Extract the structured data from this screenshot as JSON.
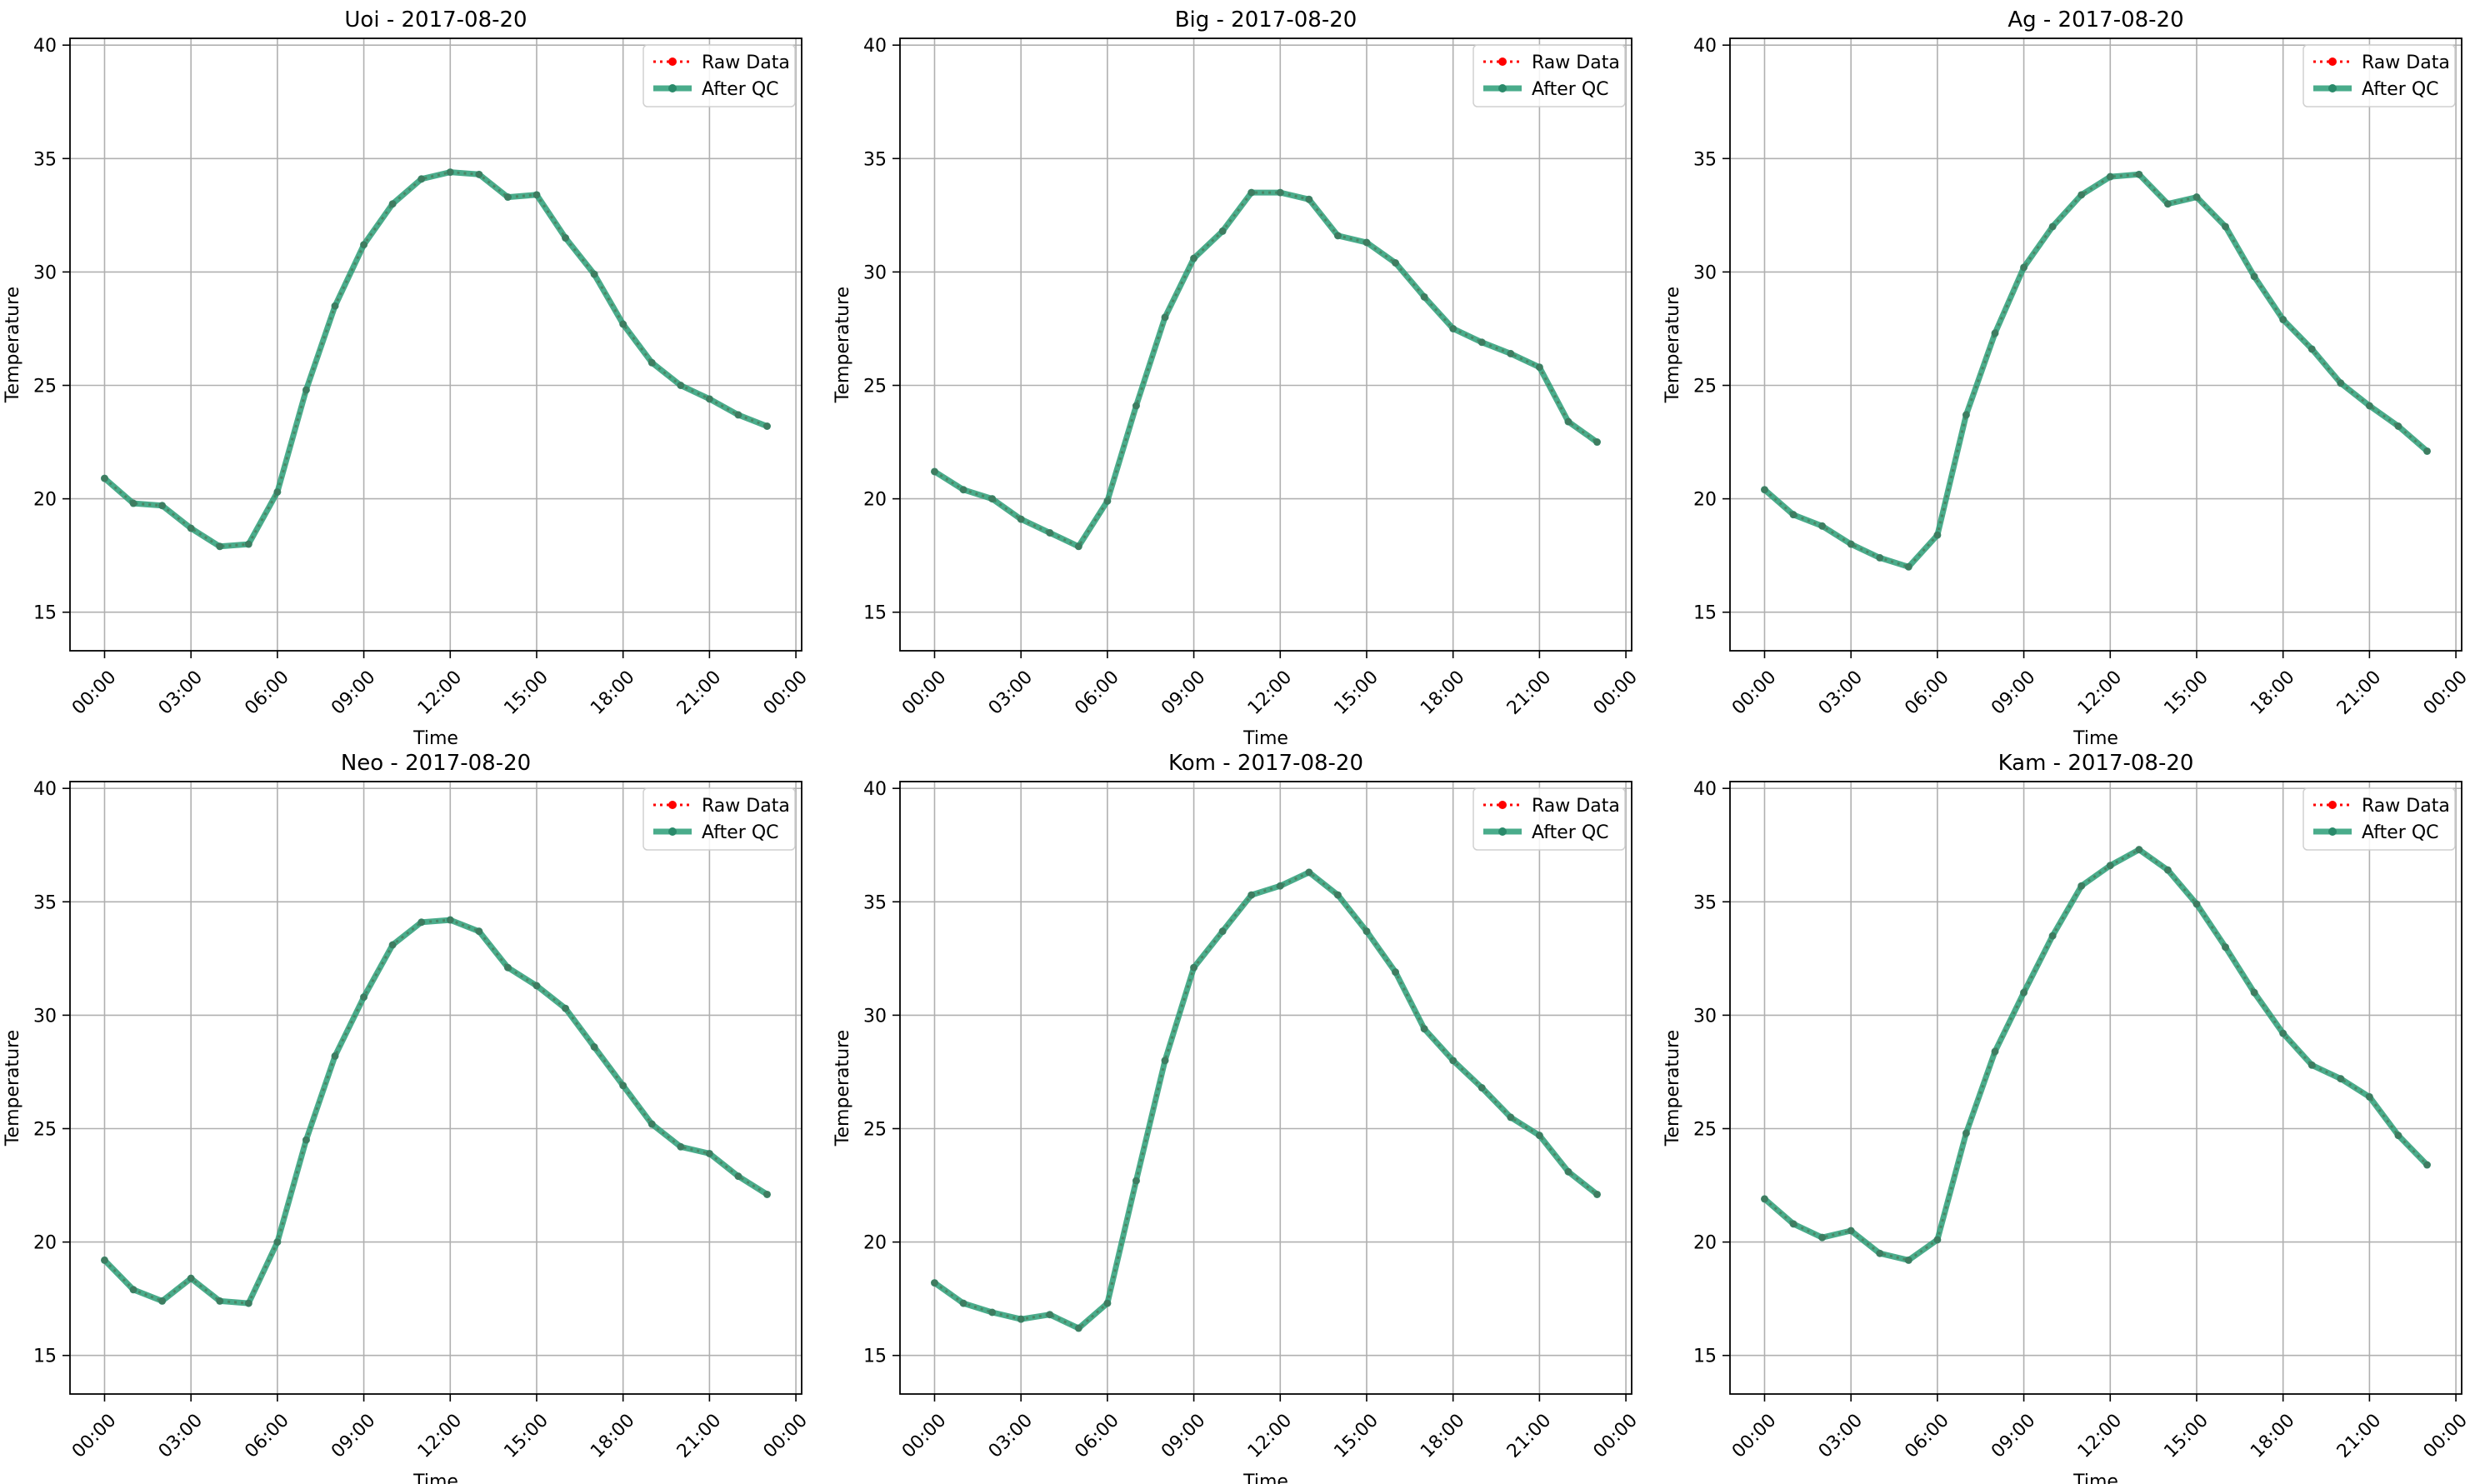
{
  "figure": {
    "legend_labels": [
      "Raw Data",
      "After QC"
    ],
    "colors": {
      "raw": "#ff0000",
      "qc": "#2a9d77",
      "marker_qc": "#2a8a6a",
      "grid": "#b0b0b0",
      "axes": "#000000"
    }
  },
  "chart_data": [
    {
      "type": "line",
      "title": "Uoi - 2017-08-20",
      "xlabel": "Time",
      "ylabel": "Temperature",
      "x_ticks": [
        "00:00",
        "03:00",
        "06:00",
        "09:00",
        "12:00",
        "15:00",
        "18:00",
        "21:00",
        "00:00"
      ],
      "y_ticks": [
        "15",
        "20",
        "25",
        "30",
        "35",
        "40"
      ],
      "xlim_hours": [
        -1.2,
        24.2
      ],
      "ylim": [
        13.3,
        40.3
      ],
      "grid": true,
      "legend_position": "upper right",
      "x_hours": [
        0,
        1,
        2,
        3,
        4,
        5,
        6,
        7,
        8,
        9,
        10,
        11,
        12,
        13,
        14,
        15,
        16,
        17,
        18,
        19,
        20,
        21,
        22,
        23
      ],
      "series": [
        {
          "name": "Raw Data",
          "style": "dotted",
          "values": [
            20.9,
            19.8,
            19.7,
            18.7,
            17.9,
            18.0,
            20.3,
            24.8,
            28.5,
            31.2,
            33.0,
            34.1,
            34.4,
            34.3,
            33.3,
            33.4,
            31.5,
            29.9,
            27.7,
            26.0,
            25.0,
            24.4,
            23.7,
            23.2
          ]
        },
        {
          "name": "After QC",
          "style": "solid",
          "values": [
            20.9,
            19.8,
            19.7,
            18.7,
            17.9,
            18.0,
            20.3,
            24.8,
            28.5,
            31.2,
            33.0,
            34.1,
            34.4,
            34.3,
            33.3,
            33.4,
            31.5,
            29.9,
            27.7,
            26.0,
            25.0,
            24.4,
            23.7,
            23.2
          ]
        }
      ]
    },
    {
      "type": "line",
      "title": "Big - 2017-08-20",
      "xlabel": "Time",
      "ylabel": "Temperature",
      "x_ticks": [
        "00:00",
        "03:00",
        "06:00",
        "09:00",
        "12:00",
        "15:00",
        "18:00",
        "21:00",
        "00:00"
      ],
      "y_ticks": [
        "15",
        "20",
        "25",
        "30",
        "35",
        "40"
      ],
      "xlim_hours": [
        -1.2,
        24.2
      ],
      "ylim": [
        13.3,
        40.3
      ],
      "grid": true,
      "legend_position": "upper right",
      "x_hours": [
        0,
        1,
        2,
        3,
        4,
        5,
        6,
        7,
        8,
        9,
        10,
        11,
        12,
        13,
        14,
        15,
        16,
        17,
        18,
        19,
        20,
        21,
        22,
        23
      ],
      "series": [
        {
          "name": "Raw Data",
          "style": "dotted",
          "values": [
            21.2,
            20.4,
            20.0,
            19.1,
            18.5,
            17.9,
            19.9,
            24.1,
            28.0,
            30.6,
            31.8,
            33.5,
            33.5,
            33.2,
            31.6,
            31.3,
            30.4,
            28.9,
            27.5,
            26.9,
            26.4,
            25.8,
            23.4,
            22.5
          ]
        },
        {
          "name": "After QC",
          "style": "solid",
          "values": [
            21.2,
            20.4,
            20.0,
            19.1,
            18.5,
            17.9,
            19.9,
            24.1,
            28.0,
            30.6,
            31.8,
            33.5,
            33.5,
            33.2,
            31.6,
            31.3,
            30.4,
            28.9,
            27.5,
            26.9,
            26.4,
            25.8,
            23.4,
            22.5
          ]
        }
      ]
    },
    {
      "type": "line",
      "title": "Ag - 2017-08-20",
      "xlabel": "Time",
      "ylabel": "Temperature",
      "x_ticks": [
        "00:00",
        "03:00",
        "06:00",
        "09:00",
        "12:00",
        "15:00",
        "18:00",
        "21:00",
        "00:00"
      ],
      "y_ticks": [
        "15",
        "20",
        "25",
        "30",
        "35",
        "40"
      ],
      "xlim_hours": [
        -1.2,
        24.2
      ],
      "ylim": [
        13.3,
        40.3
      ],
      "grid": true,
      "legend_position": "upper right",
      "x_hours": [
        0,
        1,
        2,
        3,
        4,
        5,
        6,
        7,
        8,
        9,
        10,
        11,
        12,
        13,
        14,
        15,
        16,
        17,
        18,
        19,
        20,
        21,
        22,
        23
      ],
      "series": [
        {
          "name": "Raw Data",
          "style": "dotted",
          "values": [
            20.4,
            19.3,
            18.8,
            18.0,
            17.4,
            17.0,
            18.4,
            23.7,
            27.3,
            30.2,
            32.0,
            33.4,
            34.2,
            34.3,
            33.0,
            33.3,
            32.0,
            29.8,
            27.9,
            26.6,
            25.1,
            24.1,
            23.2,
            22.1
          ]
        },
        {
          "name": "After QC",
          "style": "solid",
          "values": [
            20.4,
            19.3,
            18.8,
            18.0,
            17.4,
            17.0,
            18.4,
            23.7,
            27.3,
            30.2,
            32.0,
            33.4,
            34.2,
            34.3,
            33.0,
            33.3,
            32.0,
            29.8,
            27.9,
            26.6,
            25.1,
            24.1,
            23.2,
            22.1
          ]
        }
      ]
    },
    {
      "type": "line",
      "title": "Neo - 2017-08-20",
      "xlabel": "Time",
      "ylabel": "Temperature",
      "x_ticks": [
        "00:00",
        "03:00",
        "06:00",
        "09:00",
        "12:00",
        "15:00",
        "18:00",
        "21:00",
        "00:00"
      ],
      "y_ticks": [
        "15",
        "20",
        "25",
        "30",
        "35",
        "40"
      ],
      "xlim_hours": [
        -1.2,
        24.2
      ],
      "ylim": [
        13.3,
        40.3
      ],
      "grid": true,
      "legend_position": "upper right",
      "x_hours": [
        0,
        1,
        2,
        3,
        4,
        5,
        6,
        7,
        8,
        9,
        10,
        11,
        12,
        13,
        14,
        15,
        16,
        17,
        18,
        19,
        20,
        21,
        22,
        23
      ],
      "series": [
        {
          "name": "Raw Data",
          "style": "dotted",
          "values": [
            19.2,
            17.9,
            17.4,
            18.4,
            17.4,
            17.3,
            20.0,
            24.5,
            28.2,
            30.8,
            33.1,
            34.1,
            34.2,
            33.7,
            32.1,
            31.3,
            30.3,
            28.6,
            26.9,
            25.2,
            24.2,
            23.9,
            22.9,
            22.1
          ]
        },
        {
          "name": "After QC",
          "style": "solid",
          "values": [
            19.2,
            17.9,
            17.4,
            18.4,
            17.4,
            17.3,
            20.0,
            24.5,
            28.2,
            30.8,
            33.1,
            34.1,
            34.2,
            33.7,
            32.1,
            31.3,
            30.3,
            28.6,
            26.9,
            25.2,
            24.2,
            23.9,
            22.9,
            22.1
          ]
        }
      ]
    },
    {
      "type": "line",
      "title": "Kom - 2017-08-20",
      "xlabel": "Time",
      "ylabel": "Temperature",
      "x_ticks": [
        "00:00",
        "03:00",
        "06:00",
        "09:00",
        "12:00",
        "15:00",
        "18:00",
        "21:00",
        "00:00"
      ],
      "y_ticks": [
        "15",
        "20",
        "25",
        "30",
        "35",
        "40"
      ],
      "xlim_hours": [
        -1.2,
        24.2
      ],
      "ylim": [
        13.3,
        40.3
      ],
      "grid": true,
      "legend_position": "upper right",
      "x_hours": [
        0,
        1,
        2,
        3,
        4,
        5,
        6,
        7,
        8,
        9,
        10,
        11,
        12,
        13,
        14,
        15,
        16,
        17,
        18,
        19,
        20,
        21,
        22,
        23
      ],
      "series": [
        {
          "name": "Raw Data",
          "style": "dotted",
          "values": [
            18.2,
            17.3,
            16.9,
            16.6,
            16.8,
            16.2,
            17.3,
            22.7,
            28.0,
            32.1,
            33.7,
            35.3,
            35.7,
            36.3,
            35.3,
            33.7,
            31.9,
            29.4,
            28.0,
            26.8,
            25.5,
            24.7,
            23.1,
            22.1
          ]
        },
        {
          "name": "After QC",
          "style": "solid",
          "values": [
            18.2,
            17.3,
            16.9,
            16.6,
            16.8,
            16.2,
            17.3,
            22.7,
            28.0,
            32.1,
            33.7,
            35.3,
            35.7,
            36.3,
            35.3,
            33.7,
            31.9,
            29.4,
            28.0,
            26.8,
            25.5,
            24.7,
            23.1,
            22.1
          ]
        }
      ]
    },
    {
      "type": "line",
      "title": "Kam - 2017-08-20",
      "xlabel": "Time",
      "ylabel": "Temperature",
      "x_ticks": [
        "00:00",
        "03:00",
        "06:00",
        "09:00",
        "12:00",
        "15:00",
        "18:00",
        "21:00",
        "00:00"
      ],
      "y_ticks": [
        "15",
        "20",
        "25",
        "30",
        "35",
        "40"
      ],
      "xlim_hours": [
        -1.2,
        24.2
      ],
      "ylim": [
        13.3,
        40.3
      ],
      "grid": true,
      "legend_position": "upper right",
      "x_hours": [
        0,
        1,
        2,
        3,
        4,
        5,
        6,
        7,
        8,
        9,
        10,
        11,
        12,
        13,
        14,
        15,
        16,
        17,
        18,
        19,
        20,
        21,
        22,
        23
      ],
      "series": [
        {
          "name": "Raw Data",
          "style": "dotted",
          "values": [
            21.9,
            20.8,
            20.2,
            20.5,
            19.5,
            19.2,
            20.1,
            24.8,
            28.4,
            31.0,
            33.5,
            35.7,
            36.6,
            37.3,
            36.4,
            34.9,
            33.0,
            31.0,
            29.2,
            27.8,
            27.2,
            26.4,
            24.7,
            23.4
          ]
        },
        {
          "name": "After QC",
          "style": "solid",
          "values": [
            21.9,
            20.8,
            20.2,
            20.5,
            19.5,
            19.2,
            20.1,
            24.8,
            28.4,
            31.0,
            33.5,
            35.7,
            36.6,
            37.3,
            36.4,
            34.9,
            33.0,
            31.0,
            29.2,
            27.8,
            27.2,
            26.4,
            24.7,
            23.4
          ]
        }
      ]
    }
  ]
}
